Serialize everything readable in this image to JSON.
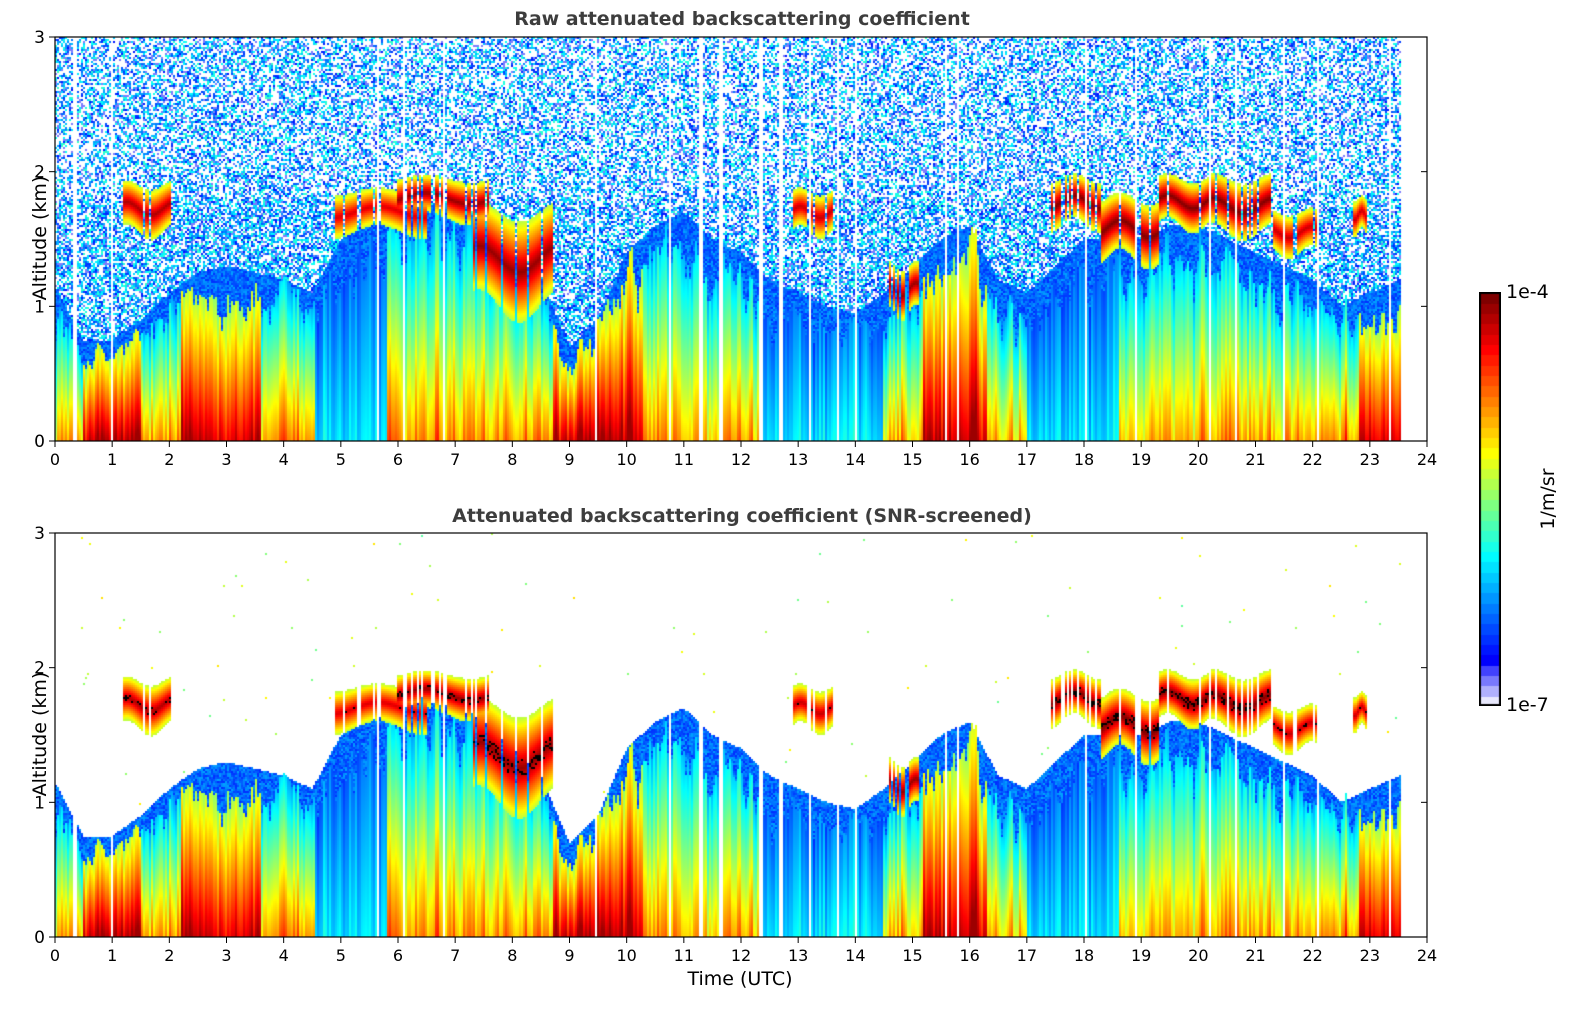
{
  "figure": {
    "colorbar": {
      "max_label": "1e-4",
      "min_label": "1e-7",
      "unit_label": "1/m/sr",
      "colormap": "jet",
      "range": [
        1e-07,
        0.0001
      ],
      "log_scale": true
    },
    "xlabel_bottom": "Time (UTC)"
  },
  "chart_data": [
    {
      "type": "heatmap",
      "title": "Raw attenuated backscattering coefficient",
      "xlabel": "",
      "ylabel": "Altitude (km)",
      "xlim": [
        0,
        24
      ],
      "ylim": [
        0,
        3
      ],
      "xticks": [
        "0",
        "1",
        "2",
        "3",
        "4",
        "5",
        "6",
        "7",
        "8",
        "9",
        "10",
        "11",
        "12",
        "13",
        "14",
        "15",
        "16",
        "17",
        "18",
        "19",
        "20",
        "21",
        "22",
        "23",
        "24"
      ],
      "yticks": [
        "0",
        "1",
        "2",
        "3"
      ],
      "grid": false,
      "screening": "none",
      "data_end_hour": 23.55,
      "noise_above_boundary_layer": true
    },
    {
      "type": "heatmap",
      "title": "Attenuated backscattering coefficient (SNR-screened)",
      "xlabel": "Time (UTC)",
      "ylabel": "Altitude (km)",
      "xlim": [
        0,
        24
      ],
      "ylim": [
        0,
        3
      ],
      "xticks": [
        "0",
        "1",
        "2",
        "3",
        "4",
        "5",
        "6",
        "7",
        "8",
        "9",
        "10",
        "11",
        "12",
        "13",
        "14",
        "15",
        "16",
        "17",
        "18",
        "19",
        "20",
        "21",
        "22",
        "23",
        "24"
      ],
      "yticks": [
        "0",
        "1",
        "2",
        "3"
      ],
      "grid": false,
      "screening": "snr",
      "data_end_hour": 23.55,
      "noise_above_boundary_layer": false
    }
  ],
  "features": {
    "boundary_layer_top_km": [
      [
        0,
        1.15
      ],
      [
        0.5,
        0.75
      ],
      [
        1,
        0.75
      ],
      [
        1.5,
        0.9
      ],
      [
        2,
        1.1
      ],
      [
        2.5,
        1.25
      ],
      [
        3,
        1.3
      ],
      [
        3.5,
        1.25
      ],
      [
        4,
        1.2
      ],
      [
        4.5,
        1.1
      ],
      [
        5,
        1.5
      ],
      [
        5.5,
        1.6
      ],
      [
        6,
        1.7
      ],
      [
        6.5,
        1.75
      ],
      [
        7,
        1.7
      ],
      [
        7.5,
        1.6
      ],
      [
        8,
        1.4
      ],
      [
        8.5,
        1.2
      ],
      [
        9,
        0.7
      ],
      [
        9.5,
        0.9
      ],
      [
        10,
        1.4
      ],
      [
        10.5,
        1.6
      ],
      [
        11,
        1.7
      ],
      [
        11.5,
        1.5
      ],
      [
        12,
        1.4
      ],
      [
        12.5,
        1.2
      ],
      [
        13,
        1.1
      ],
      [
        13.5,
        1.0
      ],
      [
        14,
        0.95
      ],
      [
        14.5,
        1.1
      ],
      [
        15,
        1.3
      ],
      [
        15.5,
        1.5
      ],
      [
        16,
        1.6
      ],
      [
        16.5,
        1.2
      ],
      [
        17,
        1.1
      ],
      [
        17.5,
        1.3
      ],
      [
        18,
        1.5
      ],
      [
        18.5,
        1.5
      ],
      [
        19,
        1.5
      ],
      [
        19.5,
        1.6
      ],
      [
        20,
        1.6
      ],
      [
        20.5,
        1.5
      ],
      [
        21,
        1.4
      ],
      [
        21.5,
        1.3
      ],
      [
        22,
        1.2
      ],
      [
        22.5,
        1.0
      ],
      [
        23,
        1.1
      ],
      [
        23.55,
        1.2
      ]
    ],
    "cloud_layers": [
      {
        "start": 1.2,
        "end": 2.05,
        "base_km": 1.55,
        "top_km": 1.9,
        "intensity": 0.9
      },
      {
        "start": 4.9,
        "end": 6.5,
        "base_km": 1.55,
        "top_km": 1.85,
        "intensity": 0.8
      },
      {
        "start": 6.0,
        "end": 7.6,
        "base_km": 1.65,
        "top_km": 1.95,
        "intensity": 0.95
      },
      {
        "start": 7.3,
        "end": 8.7,
        "base_km": 1.0,
        "top_km": 1.7,
        "intensity": 0.95
      },
      {
        "start": 12.9,
        "end": 13.6,
        "base_km": 1.55,
        "top_km": 1.85,
        "intensity": 0.85
      },
      {
        "start": 14.6,
        "end": 15.1,
        "base_km": 0.95,
        "top_km": 1.3,
        "intensity": 0.95
      },
      {
        "start": 17.4,
        "end": 18.3,
        "base_km": 1.6,
        "top_km": 1.95,
        "intensity": 1.0
      },
      {
        "start": 18.3,
        "end": 19.3,
        "base_km": 1.35,
        "top_km": 1.8,
        "intensity": 1.0
      },
      {
        "start": 19.3,
        "end": 20.2,
        "base_km": 1.6,
        "top_km": 1.95,
        "intensity": 1.0
      },
      {
        "start": 20.2,
        "end": 21.3,
        "base_km": 1.55,
        "top_km": 1.95,
        "intensity": 1.0
      },
      {
        "start": 21.3,
        "end": 22.1,
        "base_km": 1.4,
        "top_km": 1.7,
        "intensity": 0.85
      },
      {
        "start": 22.7,
        "end": 22.95,
        "base_km": 1.55,
        "top_km": 1.8,
        "intensity": 0.85
      }
    ],
    "strong_surface_aerosol_hours": [
      [
        0.5,
        1.5
      ],
      [
        2.2,
        3.6
      ],
      [
        8.7,
        10.3
      ],
      [
        15.2,
        16.3
      ],
      [
        22.8,
        23.55
      ]
    ],
    "clear_low_backscatter_hours": [
      [
        4.55,
        5.8
      ],
      [
        12.4,
        14.5
      ],
      [
        17.0,
        18.6
      ]
    ],
    "data_gaps_hours": [
      0.35,
      1.0,
      5.65,
      6.1,
      6.8,
      9.45,
      10.75,
      11.3,
      11.65,
      12.35,
      12.7,
      13.2,
      13.7,
      14.0,
      15.6,
      15.8,
      18.05,
      18.9,
      20.2,
      20.65,
      21.5,
      22.1,
      23.35
    ]
  }
}
